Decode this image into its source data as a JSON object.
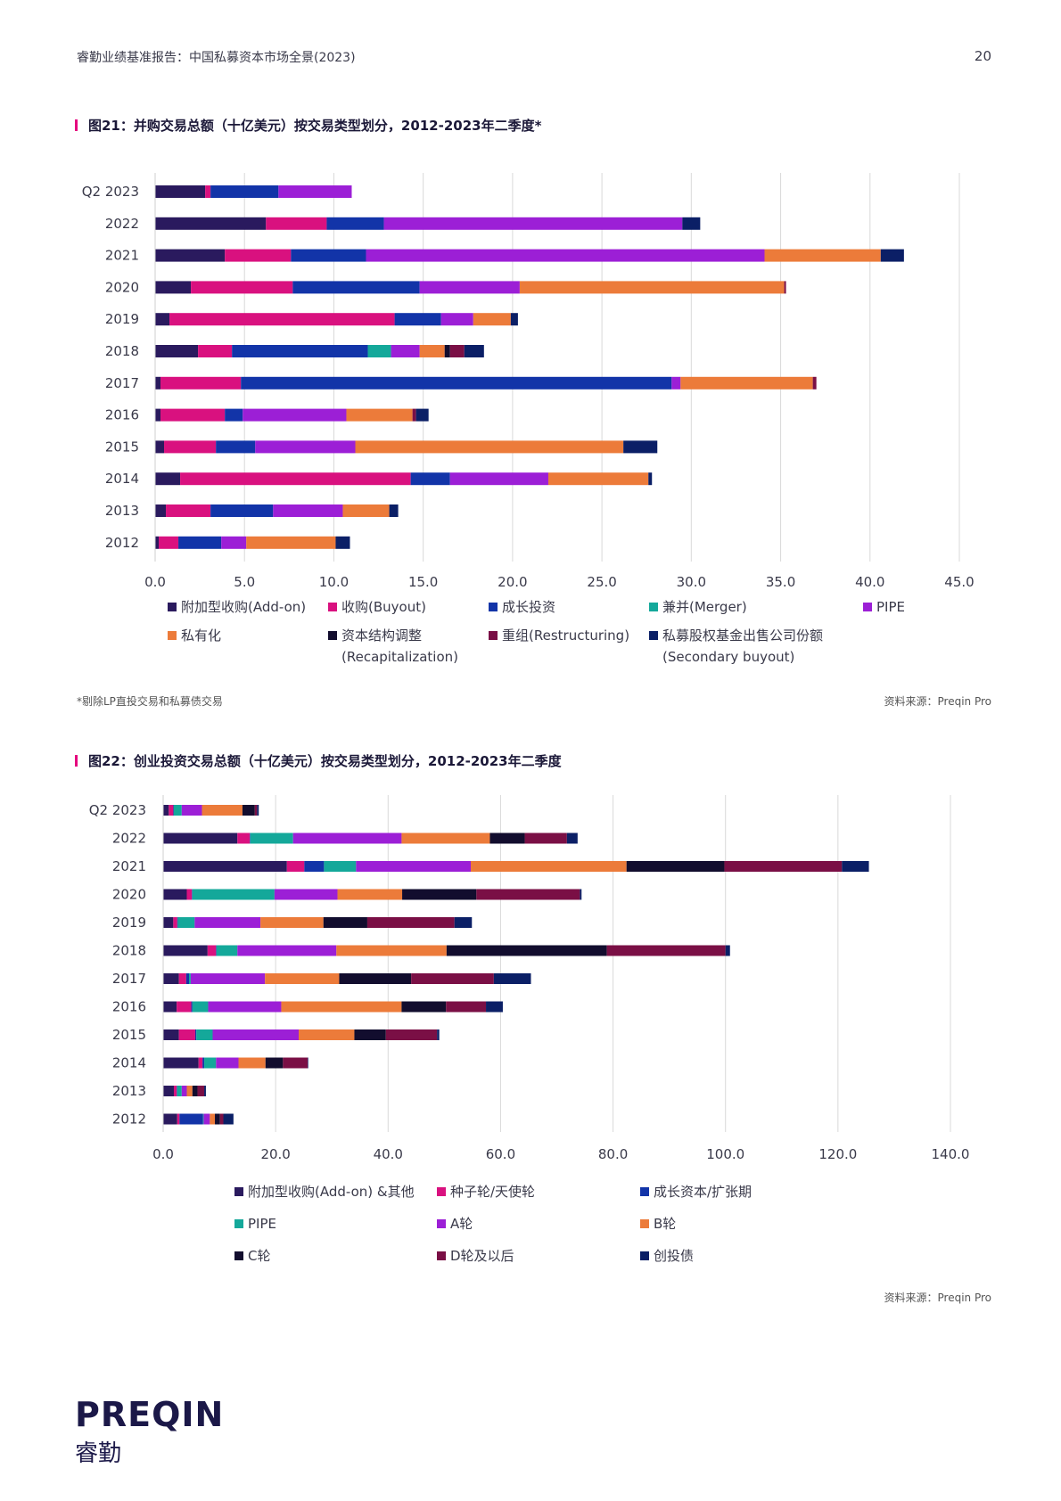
{
  "header": {
    "title": "睿勤业绩基准报告：中国私募资本市场全景(2023)",
    "page_number": "20"
  },
  "figure21": {
    "title": "图21：并购交易总额（十亿美元）按交易类型划分，2012-2023年二季度*",
    "footnote": "*剔除LP直投交易和私募债交易",
    "source": "资料来源：Preqin Pro"
  },
  "figure22": {
    "title": "图22：创业投资交易总额（十亿美元）按交易类型划分，2012-2023年二季度",
    "source": "资料来源：Preqin Pro"
  },
  "logo": {
    "word": "PREQIN",
    "cn": "睿勤"
  },
  "chart_data": [
    {
      "type": "bar",
      "orientation": "horizontal",
      "stacked": true,
      "categories": [
        "Q2 2023",
        "2022",
        "2021",
        "2020",
        "2019",
        "2018",
        "2017",
        "2016",
        "2015",
        "2014",
        "2013",
        "2012"
      ],
      "xlim": [
        0,
        45
      ],
      "xticks": [
        "0.0",
        "5.0",
        "10.0",
        "15.0",
        "20.0",
        "25.0",
        "30.0",
        "35.0",
        "40.0",
        "45.0"
      ],
      "grid": true,
      "legend_position": "bottom",
      "series": [
        {
          "name": "附加型收购(Add-on)",
          "color": "#2a1a5e",
          "values": [
            2.8,
            6.2,
            3.9,
            2.0,
            0.8,
            2.4,
            0.3,
            0.3,
            0.5,
            1.4,
            0.6,
            0.2
          ]
        },
        {
          "name": "收购(Buyout)",
          "color": "#d9117f",
          "values": [
            0.3,
            3.4,
            3.7,
            5.7,
            12.6,
            1.9,
            4.5,
            3.6,
            2.9,
            12.9,
            2.5,
            1.1
          ]
        },
        {
          "name": "成长投资",
          "color": "#1234a8",
          "values": [
            3.8,
            3.2,
            4.2,
            7.1,
            2.6,
            7.6,
            24.1,
            1.0,
            2.2,
            2.2,
            3.5,
            2.4
          ]
        },
        {
          "name": "兼并(Merger)",
          "color": "#14a89a",
          "values": [
            0,
            0,
            0,
            0,
            0,
            1.3,
            0,
            0,
            0,
            0,
            0,
            0
          ]
        },
        {
          "name": "PIPE",
          "color": "#9c1fd6",
          "values": [
            4.1,
            16.7,
            22.3,
            5.6,
            1.8,
            1.6,
            0.5,
            5.8,
            5.6,
            5.5,
            3.9,
            1.4
          ]
        },
        {
          "name": "私有化",
          "color": "#ec7b3a",
          "values": [
            0,
            0,
            6.5,
            14.8,
            2.1,
            1.4,
            7.4,
            3.7,
            15.0,
            5.6,
            2.6,
            5.0
          ]
        },
        {
          "name": "资本结构调整\n(Recapitalization)",
          "color": "#120d2e",
          "values": [
            0,
            0,
            0,
            0,
            0,
            0.3,
            0,
            0,
            0,
            0,
            0,
            0
          ]
        },
        {
          "name": "重组(Restructuring)",
          "color": "#7a0f45",
          "values": [
            0,
            0,
            0,
            0.1,
            0,
            0.8,
            0.2,
            0.2,
            0,
            0,
            0,
            0
          ]
        },
        {
          "name": "私募股权基金出售公司份额\n(Secondary buyout)",
          "color": "#0b1f66",
          "values": [
            0,
            1.0,
            1.3,
            0,
            0.4,
            1.1,
            0,
            0.7,
            1.9,
            0.2,
            0.5,
            0.8
          ]
        }
      ]
    },
    {
      "type": "bar",
      "orientation": "horizontal",
      "stacked": true,
      "categories": [
        "Q2 2023",
        "2022",
        "2021",
        "2020",
        "2019",
        "2018",
        "2017",
        "2016",
        "2015",
        "2014",
        "2013",
        "2012"
      ],
      "xlim": [
        0,
        140
      ],
      "xticks": [
        "0.0",
        "20.0",
        "40.0",
        "60.0",
        "80.0",
        "100.0",
        "120.0",
        "140.0"
      ],
      "grid": true,
      "legend_position": "bottom",
      "series": [
        {
          "name": "附加型收购(Add-on) &其他",
          "color": "#2a1a5e",
          "values": [
            1.0,
            13.2,
            22.0,
            4.2,
            1.8,
            7.9,
            2.8,
            2.4,
            2.8,
            6.3,
            1.9,
            2.5
          ]
        },
        {
          "name": "种子轮/天使轮",
          "color": "#d9117f",
          "values": [
            0.8,
            2.2,
            3.1,
            0.9,
            0.7,
            1.5,
            1.3,
            2.6,
            2.9,
            0.7,
            0.5,
            0.4
          ]
        },
        {
          "name": "成长资本/扩张期",
          "color": "#1234a8",
          "values": [
            0.1,
            0.1,
            3.5,
            0.1,
            0.1,
            0.1,
            0.5,
            0.2,
            0.2,
            0.3,
            0.1,
            4.2
          ]
        },
        {
          "name": "PIPE",
          "color": "#14a89a",
          "values": [
            1.4,
            7.6,
            5.7,
            14.6,
            3.0,
            3.7,
            0.3,
            2.8,
            2.9,
            2.1,
            0.8,
            0.1
          ]
        },
        {
          "name": "A轮",
          "color": "#9c1fd6",
          "values": [
            3.6,
            19.3,
            20.4,
            11.2,
            11.7,
            17.6,
            13.2,
            13.0,
            15.3,
            4.0,
            0.9,
            1.1
          ]
        },
        {
          "name": "B轮",
          "color": "#ec7b3a",
          "values": [
            7.2,
            15.7,
            27.7,
            11.5,
            11.2,
            19.6,
            13.2,
            21.4,
            9.9,
            4.8,
            1.0,
            0.9
          ]
        },
        {
          "name": "C轮",
          "color": "#120d2e",
          "values": [
            2.2,
            6.2,
            17.4,
            13.2,
            7.8,
            28.5,
            12.8,
            7.9,
            5.6,
            3.1,
            0.9,
            0.9
          ]
        },
        {
          "name": "D轮及以后",
          "color": "#7a0f45",
          "values": [
            0.4,
            7.5,
            20.9,
            18.4,
            15.5,
            21.1,
            14.7,
            7.1,
            9.1,
            4.4,
            1.2,
            0.6
          ]
        },
        {
          "name": "创投债",
          "color": "#0b1f66",
          "values": [
            0.3,
            1.9,
            4.8,
            0.3,
            3.1,
            0.8,
            6.6,
            3.0,
            0.4,
            0.1,
            0.3,
            1.8
          ]
        }
      ]
    }
  ]
}
